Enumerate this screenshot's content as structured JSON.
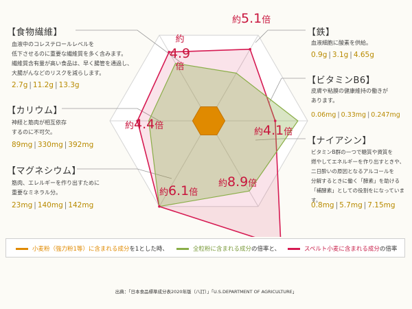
{
  "chart_data": {
    "type": "radar",
    "categories": [
      "鉄",
      "ビタミンB6",
      "ナイアシン",
      "マグネシウム",
      "カリウム",
      "食物繊維"
    ],
    "series": [
      {
        "name": "小麦粉（強力粉1等）",
        "values": [
          1,
          1,
          1,
          1,
          1,
          1
        ]
      },
      {
        "name": "全粒粉",
        "values": [
          3.4,
          5.5,
          5.0,
          6.1,
          3.7,
          4.1
        ]
      },
      {
        "name": "スペルト小麦",
        "values": [
          5.1,
          4.1,
          8.9,
          6.1,
          4.4,
          4.9
        ]
      }
    ],
    "rlim": [
      0,
      6.1
    ],
    "grid_rings": 6,
    "colors": {
      "base": "#e08a00",
      "whole": "#8aae48",
      "spelt": "#d61a52"
    }
  },
  "nutrients": {
    "fiber": {
      "title": "【食物繊維】",
      "desc": "血液中のコレステロールレベルを\n低下させるのに重要な繊維質を多く含みます。\n繊維質含有量が高い食品は、早く腸管を通過し、\n大腸がんなどのリスクを減らします。",
      "v1": "2.7g",
      "v2": "11.2g",
      "v3": "13.3g",
      "mult_pre": "約",
      "mult_num": "4.9",
      "mult_suf": "倍"
    },
    "potassium": {
      "title": "【カリウム】",
      "desc": "神経と筋肉が相互依存\nするのに不可欠。",
      "v1": "89mg",
      "v2": "330mg",
      "v3": "392mg",
      "mult_pre": "約",
      "mult_num": "4.4",
      "mult_suf": "倍"
    },
    "magnesium": {
      "title": "【マグネシウム】",
      "desc": "筋肉、エレルギーを作り出すために\n重要なミネラル分。",
      "v1": "23mg",
      "v2": "140mg",
      "v3": "142mg",
      "mult_pre": "約",
      "mult_num": "6.1",
      "mult_suf": "倍"
    },
    "iron": {
      "title": "【鉄】",
      "desc": "血液細胞に酸素を供給。",
      "v1": "0.9g",
      "v2": "3.1g",
      "v3": "4.65g",
      "mult_pre": "約",
      "mult_num": "5.1",
      "mult_suf": "倍"
    },
    "b6": {
      "title": "【ビタミンB6】",
      "desc": "皮膚や粘膜の健康維持の働きが\nあります。",
      "v1": "0.06mg",
      "v2": "0.33mg",
      "v3": "0.247mg",
      "mult_pre": "約",
      "mult_num": "4.1",
      "mult_suf": "倍"
    },
    "niacin": {
      "title": "【ナイアシン】",
      "desc": "ビタミンB群の一つで糖質や資質を\n燃やしてエネルギーを作り出すときや、\n二日酔いの原因となるアルコールを\n分解するときに働く「酵素」を助ける\n「補酵素」としての役割をになっています。",
      "v1": "0.8mg",
      "v2": "5.7mg",
      "v3": "7.15mg",
      "mult_pre": "約",
      "mult_num": "8.9",
      "mult_suf": "倍"
    }
  },
  "legend": {
    "part1": "小麦粉（強力粉1等）に含まれる成分",
    "part2": "を1とした時、",
    "part3": "全粒粉に含まれる成分",
    "part4": "の倍率と、",
    "part5": "スペルト小麦に含まれる成分",
    "part6": "の倍率"
  },
  "source": "出典：「日本食品標準成分表2020年版（八訂）」「U.S.DEPARTMENT OF AGRICULTURE」"
}
